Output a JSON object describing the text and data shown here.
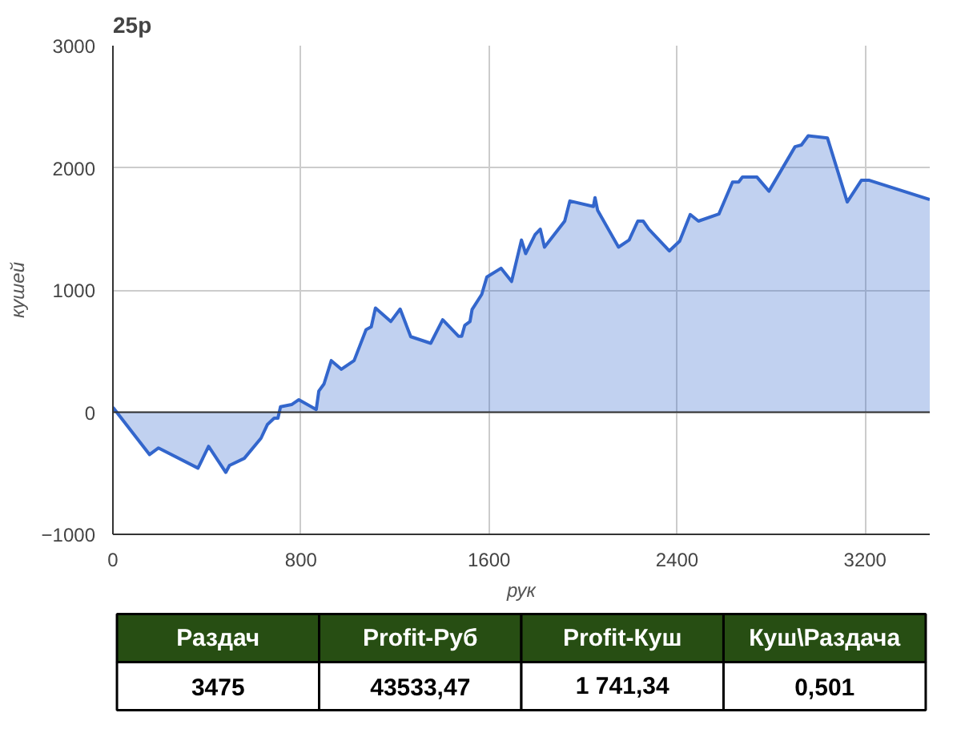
{
  "chart_data": [
    {
      "type": "area",
      "title": "25р",
      "xlabel": "рук",
      "ylabel": "кушей",
      "x": [
        0,
        156,
        194,
        362,
        407,
        480,
        496,
        559,
        630,
        657,
        686,
        702,
        713,
        760,
        791,
        865,
        876,
        898,
        929,
        972,
        1026,
        1077,
        1099,
        1117,
        1182,
        1222,
        1267,
        1352,
        1403,
        1470,
        1484,
        1497,
        1519,
        1528,
        1569,
        1591,
        1651,
        1696,
        1738,
        1756,
        1796,
        1818,
        1836,
        1922,
        1944,
        2044,
        2051,
        2062,
        2151,
        2196,
        2233,
        2256,
        2280,
        2367,
        2411,
        2456,
        2491,
        2578,
        2636,
        2662,
        2678,
        2740,
        2791,
        2902,
        2929,
        2958,
        3040,
        3124,
        3184,
        3218,
        3475
      ],
      "series": [
        {
          "color": "#3366cc",
          "values": [
            40,
            -347,
            -293,
            -458,
            -280,
            -493,
            -436,
            -378,
            -213,
            -102,
            -49,
            -49,
            44,
            62,
            102,
            22,
            173,
            231,
            422,
            351,
            422,
            676,
            698,
            853,
            742,
            844,
            618,
            564,
            756,
            622,
            622,
            711,
            742,
            840,
            964,
            1107,
            1178,
            1070,
            1409,
            1298,
            1453,
            1498,
            1351,
            1564,
            1729,
            1684,
            1756,
            1653,
            1351,
            1409,
            1564,
            1564,
            1498,
            1320,
            1400,
            1618,
            1564,
            1622,
            1884,
            1884,
            1924,
            1924,
            1809,
            2173,
            2187,
            2262,
            2244,
            1720,
            1898,
            1898,
            1741
          ]
        }
      ],
      "xlim": [
        0,
        3475
      ],
      "ylim": [
        -1000,
        3000
      ],
      "xticks": [
        0,
        800,
        1600,
        2400,
        3200
      ],
      "yticks": [
        -1000,
        0,
        1000,
        2000,
        3000
      ],
      "grid": true,
      "ref_lines": [
        {
          "axis": "y",
          "value": 0,
          "color": "#333333"
        }
      ]
    },
    {
      "type": "other",
      "color": "#274e13",
      "categories": [
        "Раздач",
        "Profit-Руб",
        "Profit-Куш",
        "Куш\\Раздача"
      ],
      "value_labels": [
        "3475",
        "43533,47",
        "1 741,34",
        "0,501"
      ]
    }
  ]
}
